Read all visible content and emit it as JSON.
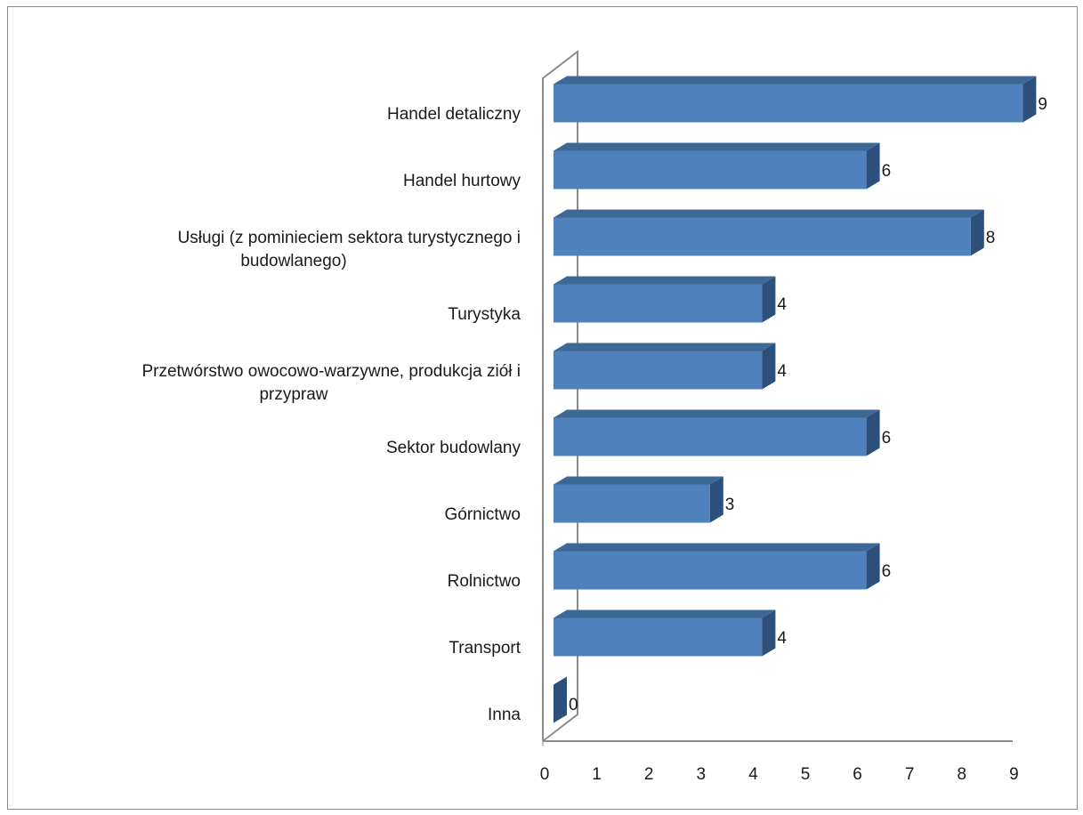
{
  "chart_data": {
    "type": "bar",
    "orientation": "horizontal",
    "style": "3d-bar",
    "categories": [
      "Handel detaliczny",
      "Handel hurtowy",
      "Usługi (z pominieciem sektora turystycznego i budowlanego)",
      "Turystyka",
      "Przetwórstwo owocowo-warzywne, produkcja ziół i przypraw",
      "Sektor budowlany",
      "Górnictwo",
      "Rolnictwo",
      "Transport",
      "Inna"
    ],
    "category_label_lines": [
      [
        "Handel detaliczny"
      ],
      [
        "Handel hurtowy"
      ],
      [
        "Usługi (z pominieciem sektora turystycznego i",
        "budowlanego)"
      ],
      [
        "Turystyka"
      ],
      [
        "Przetwórstwo owocowo-warzywne, produkcja ziół i",
        "przypraw"
      ],
      [
        "Sektor budowlany"
      ],
      [
        "Górnictwo"
      ],
      [
        "Rolnictwo"
      ],
      [
        "Transport"
      ],
      [
        "Inna"
      ]
    ],
    "values": [
      9,
      6,
      8,
      4,
      4,
      6,
      3,
      6,
      4,
      0
    ],
    "data_labels": [
      "9",
      "6",
      "8",
      "4",
      "4",
      "6",
      "3",
      "6",
      "4",
      "0"
    ],
    "x_ticks": [
      "0",
      "1",
      "2",
      "3",
      "4",
      "5",
      "6",
      "7",
      "8",
      "9"
    ],
    "xlim": [
      0,
      9
    ],
    "title": "",
    "xlabel": "",
    "ylabel": "",
    "grid": false,
    "legend": "none",
    "colors": {
      "bar_front": "#4f81bd",
      "bar_top": "#3d6896",
      "bar_side": "#2c4f7c",
      "axis": "#8c8c8c",
      "frame": "#8c8c8c"
    }
  }
}
